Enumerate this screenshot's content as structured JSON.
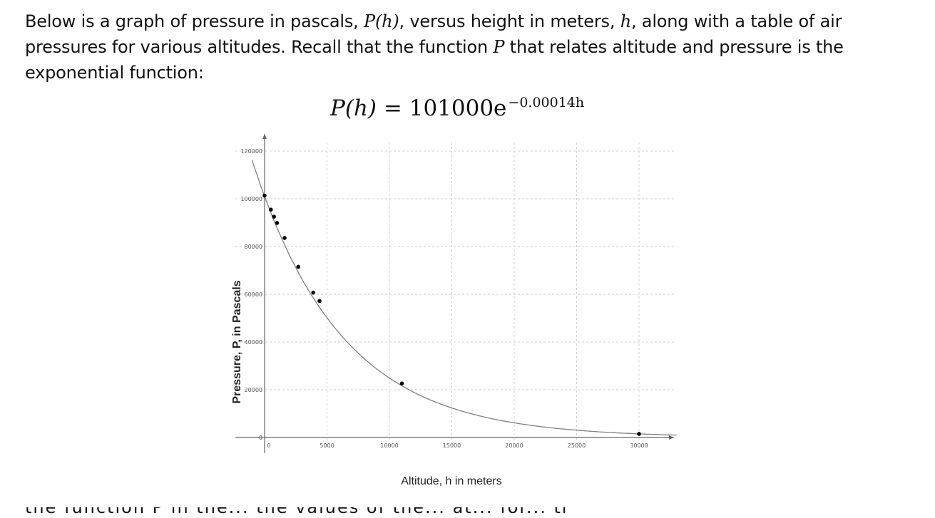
{
  "intro": {
    "part1": "Below is a graph of pressure in pascals, ",
    "sym_P_h": "P(h)",
    "part2": ", versus height in meters, ",
    "sym_h": "h",
    "part3": ", along with a table of air pressures for various altitudes. Recall that the function ",
    "sym_P": "P",
    "part4": " that relates altitude and pressure is the exponential function:"
  },
  "formula": {
    "lhs": "P(h)",
    "eq": "=",
    "base": "101000e",
    "exponent": "−0.00014h"
  },
  "bottom_text": "the function P in the... the values of the... at... for... the table",
  "chart_data": {
    "type": "scatter",
    "title": "",
    "xlabel": "Altitude, h in meters",
    "ylabel": "Pressure, P, in Pascals",
    "xlim": [
      -2000,
      33500
    ],
    "ylim": [
      -3000,
      125000
    ],
    "x_ticks": [
      0,
      5000,
      10000,
      15000,
      20000,
      25000,
      30000
    ],
    "y_ticks": [
      0,
      20000,
      40000,
      60000,
      80000,
      100000,
      120000
    ],
    "x_tick_labels": [
      "0",
      "5000",
      "10000",
      "15000",
      "20000",
      "25000",
      "30000"
    ],
    "y_tick_labels": [
      "0",
      "20000",
      "40000",
      "60000",
      "80000",
      "100000",
      "120000"
    ],
    "grid": true,
    "curve": {
      "a": 101000,
      "k": 0.00014,
      "x_range": [
        -1000,
        33000
      ]
    },
    "points": [
      {
        "x": 0,
        "y": 101325
      },
      {
        "x": 500,
        "y": 95461
      },
      {
        "x": 750,
        "y": 92500
      },
      {
        "x": 1000,
        "y": 89875
      },
      {
        "x": 1600,
        "y": 83600
      },
      {
        "x": 2700,
        "y": 71500
      },
      {
        "x": 3900,
        "y": 60700
      },
      {
        "x": 4400,
        "y": 57200
      },
      {
        "x": 11000,
        "y": 22632
      },
      {
        "x": 30000,
        "y": 1500
      }
    ],
    "colors": {
      "curve": "#808080",
      "points": "#000000",
      "grid": "#cfcfcf",
      "axis": "#666666"
    }
  }
}
